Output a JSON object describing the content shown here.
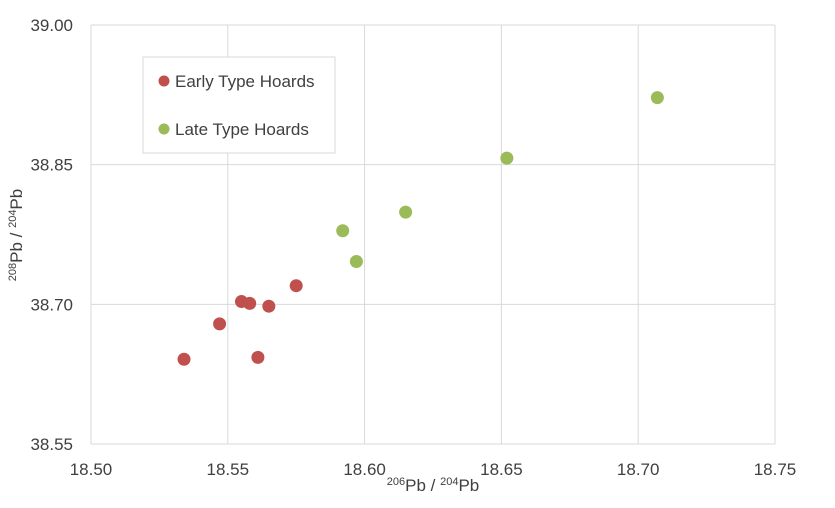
{
  "chart_data": {
    "type": "scatter",
    "title": "",
    "xlabel": {
      "pre_sup": "206",
      "mid1": "Pb / ",
      "mid_sup": "204",
      "post": "Pb"
    },
    "ylabel": {
      "pre_sup": "208",
      "mid1": "Pb / ",
      "mid_sup": "204",
      "post": "Pb"
    },
    "xlim": [
      18.5,
      18.75
    ],
    "ylim": [
      38.55,
      39.0
    ],
    "xticks": [
      "18.50",
      "18.55",
      "18.60",
      "18.65",
      "18.70",
      "18.75"
    ],
    "yticks": [
      "38.55",
      "38.70",
      "38.85",
      "39.00"
    ],
    "grid": true,
    "legend_position": "top-left",
    "series": [
      {
        "name": "Early Type Hoards",
        "color": "#c0504d",
        "points": [
          {
            "x": 18.534,
            "y": 38.641
          },
          {
            "x": 18.547,
            "y": 38.679
          },
          {
            "x": 18.555,
            "y": 38.703
          },
          {
            "x": 18.558,
            "y": 38.701
          },
          {
            "x": 18.561,
            "y": 38.643
          },
          {
            "x": 18.565,
            "y": 38.698
          },
          {
            "x": 18.575,
            "y": 38.72
          }
        ]
      },
      {
        "name": "Late Type Hoards",
        "color": "#9bbb59",
        "points": [
          {
            "x": 18.592,
            "y": 38.779
          },
          {
            "x": 18.597,
            "y": 38.746
          },
          {
            "x": 18.615,
            "y": 38.799
          },
          {
            "x": 18.652,
            "y": 38.857
          },
          {
            "x": 18.707,
            "y": 38.922
          }
        ]
      }
    ]
  }
}
